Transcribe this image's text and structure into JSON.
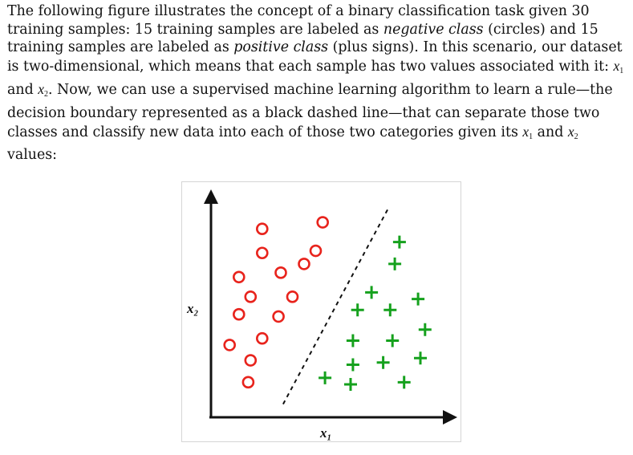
{
  "text": {
    "p1": "The following figure illustrates the concept of a binary classification task given 30 training samples: 15 training samples are labeled as ",
    "negative_class": "negative class",
    "p2": " (circles) and 15 training samples are labeled as ",
    "positive_class": "positive class",
    "p3": " (plus signs). In this scenario, our dataset is two-dimensional, which means that each sample has two values associated with it: ",
    "p4": " and ",
    "p5": ". Now, we can use a supervised machine learning algorithm to learn a rule—the decision boundary represented as a black dashed line—that can separate those two classes and classify new data into each of those two categories given its ",
    "p6": " and ",
    "p7": " values:",
    "var_x": "x",
    "sub_1": "1",
    "sub_2": "2"
  },
  "chart_data": {
    "type": "scatter",
    "xlabel": "x₁",
    "ylabel": "x₂",
    "grid": false,
    "legend": "none",
    "xlim": [
      0,
      10
    ],
    "ylim": [
      0,
      10
    ],
    "decision_boundary": {
      "style": "dashed",
      "color": "#111111",
      "from": [
        3.1,
        0.6
      ],
      "to": [
        7.6,
        9.5
      ]
    },
    "series": [
      {
        "marker": "circle",
        "color": "#e8231c",
        "points": [
          [
            2.2,
            8.6
          ],
          [
            4.8,
            8.9
          ],
          [
            2.2,
            7.5
          ],
          [
            4.5,
            7.6
          ],
          [
            4.0,
            7.0
          ],
          [
            1.2,
            6.4
          ],
          [
            3.0,
            6.6
          ],
          [
            1.7,
            5.5
          ],
          [
            3.5,
            5.5
          ],
          [
            1.2,
            4.7
          ],
          [
            2.9,
            4.6
          ],
          [
            0.8,
            3.3
          ],
          [
            2.2,
            3.6
          ],
          [
            1.7,
            2.6
          ],
          [
            1.6,
            1.6
          ]
        ]
      },
      {
        "marker": "plus",
        "color": "#15a11d",
        "points": [
          [
            8.1,
            8.0
          ],
          [
            7.9,
            7.0
          ],
          [
            6.9,
            5.7
          ],
          [
            8.9,
            5.4
          ],
          [
            6.3,
            4.9
          ],
          [
            7.7,
            4.9
          ],
          [
            9.2,
            4.0
          ],
          [
            6.1,
            3.5
          ],
          [
            7.8,
            3.5
          ],
          [
            6.1,
            2.4
          ],
          [
            7.4,
            2.5
          ],
          [
            9.0,
            2.7
          ],
          [
            4.9,
            1.8
          ],
          [
            6.0,
            1.5
          ],
          [
            8.3,
            1.6
          ]
        ]
      }
    ]
  }
}
